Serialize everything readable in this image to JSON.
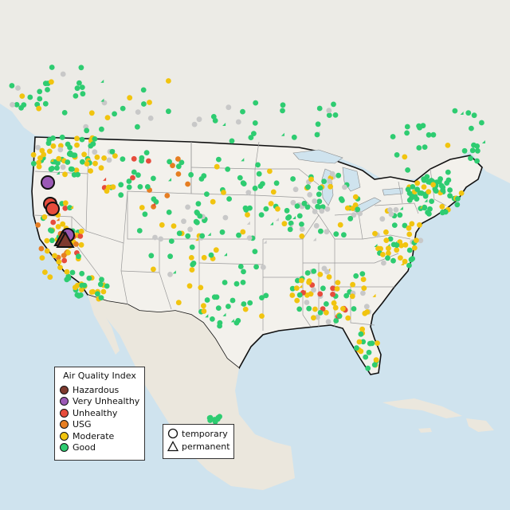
{
  "legend": {
    "title": "Air Quality Index",
    "categories": [
      {
        "label": "Hazardous",
        "color": "#7e3a2e"
      },
      {
        "label": "Very Unhealthy",
        "color": "#9b59b6"
      },
      {
        "label": "Unhealthy",
        "color": "#e74c3c"
      },
      {
        "label": "USG",
        "color": "#e67e22"
      },
      {
        "label": "Moderate",
        "color": "#f1c40f"
      },
      {
        "label": "Good",
        "color": "#2ecc71"
      }
    ]
  },
  "monitor_types": [
    {
      "label": "temporary",
      "shape": "circle"
    },
    {
      "label": "permanent",
      "shape": "triangle"
    }
  ],
  "colors": {
    "water": "#cfe3ee",
    "land": "#f2efe9",
    "mexico": "#e8e4da",
    "us_border": "#111111",
    "state_border": "#999999",
    "no_data": "#c8c8c8"
  }
}
